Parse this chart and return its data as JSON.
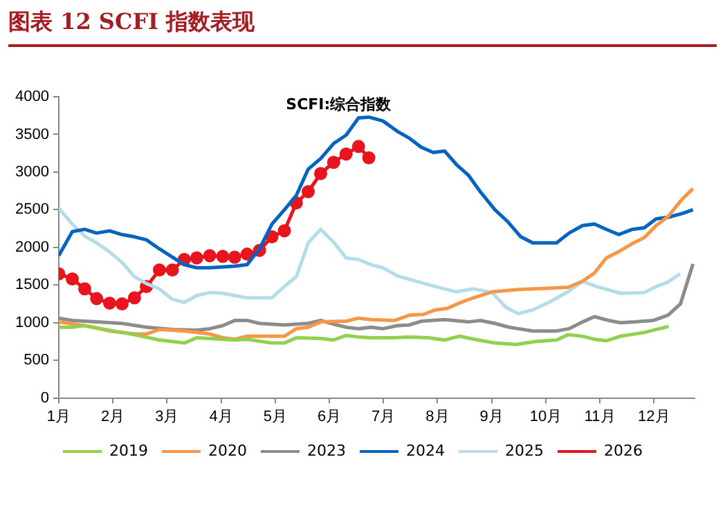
{
  "chart_data": {
    "type": "line",
    "title": "图表 12 SCFI 指数表现",
    "annotations": [
      "SCFI:综合指数"
    ],
    "xlim": [
      1,
      12.75
    ],
    "xticks": [
      {
        "value": 1,
        "label": "1月"
      },
      {
        "value": 2,
        "label": "2月"
      },
      {
        "value": 3,
        "label": "3月"
      },
      {
        "value": 4,
        "label": "4月"
      },
      {
        "value": 5,
        "label": "5月"
      },
      {
        "value": 6,
        "label": "6月"
      },
      {
        "value": 7,
        "label": "7月"
      },
      {
        "value": 8,
        "label": "8月"
      },
      {
        "value": 9,
        "label": "9月"
      },
      {
        "value": 10,
        "label": "10月"
      },
      {
        "value": 11,
        "label": "11月"
      },
      {
        "value": 12,
        "label": "12月"
      }
    ],
    "ylim": [
      0,
      4000
    ],
    "yticks": [
      0,
      500,
      1000,
      1500,
      2000,
      2500,
      3000,
      3500,
      4000
    ],
    "grid": false,
    "legend": "bottom",
    "marker": "none",
    "line_style": "solid",
    "series": [
      {
        "name": "2019",
        "color": "#92d050",
        "x": [
          1,
          1.25,
          1.48,
          1.94,
          2.4,
          2.86,
          3.32,
          3.55,
          4.03,
          4.25,
          4.48,
          4.94,
          5.17,
          5.39,
          5.84,
          6.08,
          6.31,
          6.54,
          6.77,
          7.17,
          7.48,
          7.83,
          8.13,
          8.4,
          8.75,
          9.06,
          9.45,
          9.8,
          10.2,
          10.41,
          10.68,
          10.9,
          11.12,
          11.38,
          11.82,
          12.27
        ],
        "values": [
          940,
          940,
          960,
          900,
          840,
          770,
          730,
          800,
          780,
          770,
          780,
          730,
          730,
          800,
          790,
          770,
          830,
          810,
          800,
          800,
          810,
          800,
          770,
          820,
          770,
          730,
          710,
          750,
          770,
          840,
          820,
          780,
          760,
          820,
          870,
          950
        ]
      },
      {
        "name": "2020",
        "color": "#f79646",
        "x": [
          1,
          1.48,
          1.94,
          2.4,
          2.62,
          2.86,
          3.32,
          3.79,
          4.03,
          4.25,
          4.48,
          5.17,
          5.39,
          5.61,
          5.84,
          6.31,
          6.54,
          6.77,
          7.21,
          7.48,
          7.74,
          7.96,
          8.18,
          8.4,
          8.66,
          9.01,
          9.49,
          10.41,
          10.68,
          10.9,
          11.12,
          11.34,
          11.6,
          11.82,
          12.04,
          12.26,
          12.52,
          12.72
        ],
        "values": [
          1010,
          960,
          890,
          850,
          850,
          910,
          890,
          850,
          800,
          780,
          820,
          820,
          920,
          940,
          1010,
          1020,
          1060,
          1040,
          1030,
          1100,
          1110,
          1170,
          1190,
          1260,
          1330,
          1410,
          1440,
          1470,
          1550,
          1660,
          1860,
          1940,
          2050,
          2130,
          2290,
          2410,
          2640,
          2780
        ]
      },
      {
        "name": "2023",
        "color": "#8c8c8c",
        "x": [
          1,
          1.25,
          1.7,
          2.17,
          2.62,
          3.1,
          3.55,
          3.79,
          4.03,
          4.25,
          4.48,
          4.71,
          5.17,
          5.61,
          5.84,
          6.08,
          6.31,
          6.54,
          6.77,
          6.99,
          7.26,
          7.48,
          7.7,
          8.13,
          8.57,
          8.79,
          9.06,
          9.32,
          9.76,
          10.2,
          10.43,
          10.68,
          10.9,
          11.16,
          11.38,
          11.64,
          11.99,
          12.26,
          12.49,
          12.72
        ],
        "values": [
          1060,
          1030,
          1010,
          990,
          940,
          910,
          900,
          920,
          960,
          1030,
          1030,
          990,
          970,
          990,
          1030,
          980,
          940,
          920,
          940,
          920,
          960,
          970,
          1020,
          1040,
          1010,
          1030,
          990,
          940,
          890,
          890,
          920,
          1010,
          1080,
          1030,
          1000,
          1010,
          1030,
          1100,
          1250,
          1780
        ]
      },
      {
        "name": "2024",
        "color": "#0563c1",
        "x": [
          1,
          1.25,
          1.48,
          1.7,
          1.94,
          2.17,
          2.4,
          2.62,
          2.86,
          3.1,
          3.32,
          3.55,
          3.79,
          4.25,
          4.48,
          4.71,
          4.94,
          5.17,
          5.39,
          5.61,
          5.84,
          6.08,
          6.31,
          6.54,
          6.73,
          6.99,
          7.26,
          7.48,
          7.7,
          7.92,
          8.13,
          8.35,
          8.57,
          8.79,
          9.06,
          9.3,
          9.54,
          9.76,
          10.2,
          10.43,
          10.68,
          10.9,
          11.12,
          11.35,
          11.6,
          11.82,
          12.04,
          12.26,
          12.52,
          12.72
        ],
        "values": [
          1890,
          2210,
          2240,
          2190,
          2220,
          2170,
          2140,
          2100,
          1980,
          1870,
          1770,
          1730,
          1730,
          1750,
          1770,
          1980,
          2310,
          2500,
          2690,
          3040,
          3180,
          3380,
          3490,
          3720,
          3730,
          3680,
          3540,
          3450,
          3330,
          3260,
          3280,
          3100,
          2960,
          2740,
          2500,
          2340,
          2140,
          2060,
          2060,
          2190,
          2290,
          2310,
          2240,
          2170,
          2240,
          2260,
          2380,
          2400,
          2450,
          2500
        ]
      },
      {
        "name": "2025",
        "color": "#b4dce9",
        "x": [
          1,
          1.25,
          1.48,
          1.7,
          1.94,
          2.17,
          2.4,
          2.62,
          2.86,
          3.1,
          3.32,
          3.55,
          3.79,
          4.03,
          4.25,
          4.48,
          4.71,
          4.94,
          5.17,
          5.39,
          5.61,
          5.84,
          6.08,
          6.31,
          6.54,
          6.77,
          6.99,
          7.26,
          7.61,
          7.96,
          8.35,
          8.66,
          9.01,
          9.27,
          9.49,
          9.76,
          10.06,
          10.41,
          10.68,
          10.94,
          11.38,
          11.82,
          12.04,
          12.26,
          12.48
        ],
        "values": [
          2520,
          2310,
          2150,
          2060,
          1940,
          1800,
          1610,
          1520,
          1450,
          1310,
          1270,
          1360,
          1400,
          1390,
          1360,
          1330,
          1330,
          1330,
          1480,
          1610,
          2060,
          2240,
          2070,
          1860,
          1840,
          1770,
          1730,
          1620,
          1550,
          1480,
          1410,
          1450,
          1400,
          1200,
          1120,
          1170,
          1270,
          1410,
          1550,
          1480,
          1390,
          1400,
          1480,
          1540,
          1650
        ]
      },
      {
        "name": "2026",
        "color": "#e8141e",
        "marker": "circle",
        "x": [
          1,
          1.25,
          1.48,
          1.7,
          1.94,
          2.17,
          2.4,
          2.62,
          2.86,
          3.1,
          3.32,
          3.55,
          3.79,
          4.03,
          4.25,
          4.48,
          4.71,
          4.94,
          5.17,
          5.39,
          5.61,
          5.84,
          6.08,
          6.31,
          6.54,
          6.73
        ],
        "values": [
          1650,
          1580,
          1450,
          1320,
          1260,
          1250,
          1330,
          1480,
          1700,
          1700,
          1840,
          1860,
          1890,
          1880,
          1870,
          1910,
          1960,
          2140,
          2220,
          2590,
          2740,
          2980,
          3130,
          3240,
          3340,
          3190
        ]
      }
    ]
  }
}
